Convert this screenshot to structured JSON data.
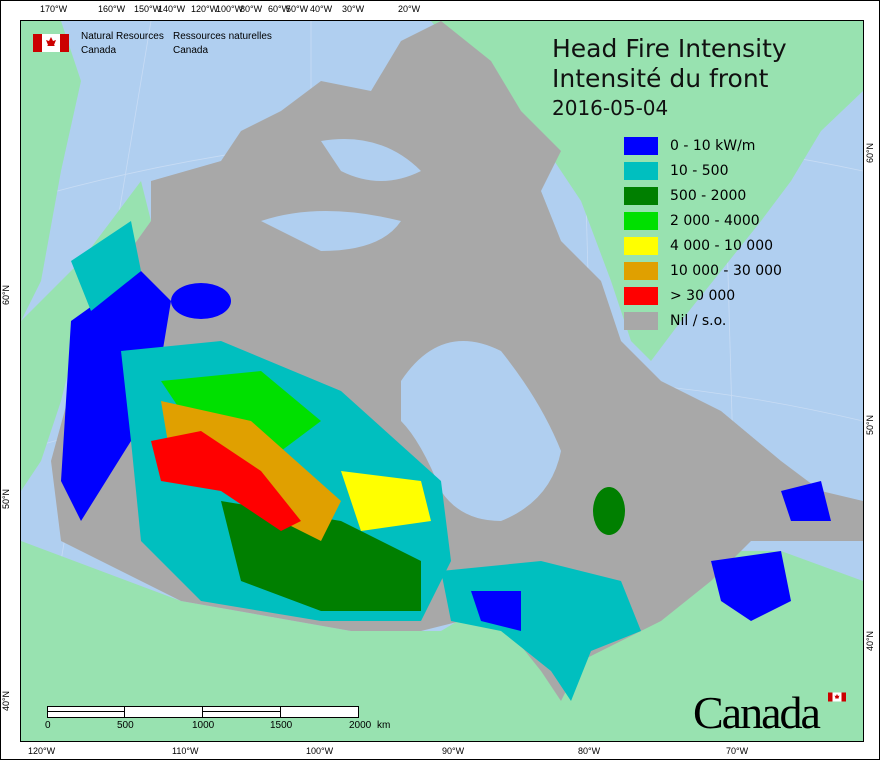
{
  "header": {
    "org_en": [
      "Natural Resources",
      "Canada"
    ],
    "org_fr": [
      "Ressources naturelles",
      "Canada"
    ]
  },
  "title": {
    "line1": "Head Fire Intensity",
    "line2": "Intensité du front",
    "date": "2016-05-04"
  },
  "legend": [
    {
      "label": "0 - 10 kW/m",
      "color": "#0000ff"
    },
    {
      "label": "10 - 500",
      "color": "#00bfbf"
    },
    {
      "label": "500 - 2000",
      "color": "#007f00"
    },
    {
      "label": "2 000 - 4000",
      "color": "#00e000"
    },
    {
      "label": "4 000 - 10 000",
      "color": "#ffff00"
    },
    {
      "label": "10 000 - 30 000",
      "color": "#e0a000"
    },
    {
      "label": "> 30 000",
      "color": "#ff0000"
    },
    {
      "label": "Nil / s.o.",
      "color": "#a8a8a8"
    }
  ],
  "axes": {
    "top": [
      "170°W",
      "160°W",
      "150°W",
      "140°W",
      "120°W",
      "100°W",
      "80°W",
      "60°W",
      "50°W",
      "40°W",
      "30°W",
      "20°W"
    ],
    "bottom": [
      "120°W",
      "110°W",
      "100°W",
      "90°W",
      "80°W",
      "70°W"
    ],
    "left": [
      "60°N",
      "50°N",
      "40°N"
    ],
    "right": [
      "60°N",
      "50°N",
      "40°N"
    ]
  },
  "scale_bar": {
    "labels": [
      "0",
      "500",
      "1000",
      "1500",
      "2000"
    ],
    "unit": "km"
  },
  "wordmark": "Canada",
  "colors": {
    "water": "#b0cff0",
    "land": "#98e2b0",
    "canada": "#a8a8a8"
  }
}
